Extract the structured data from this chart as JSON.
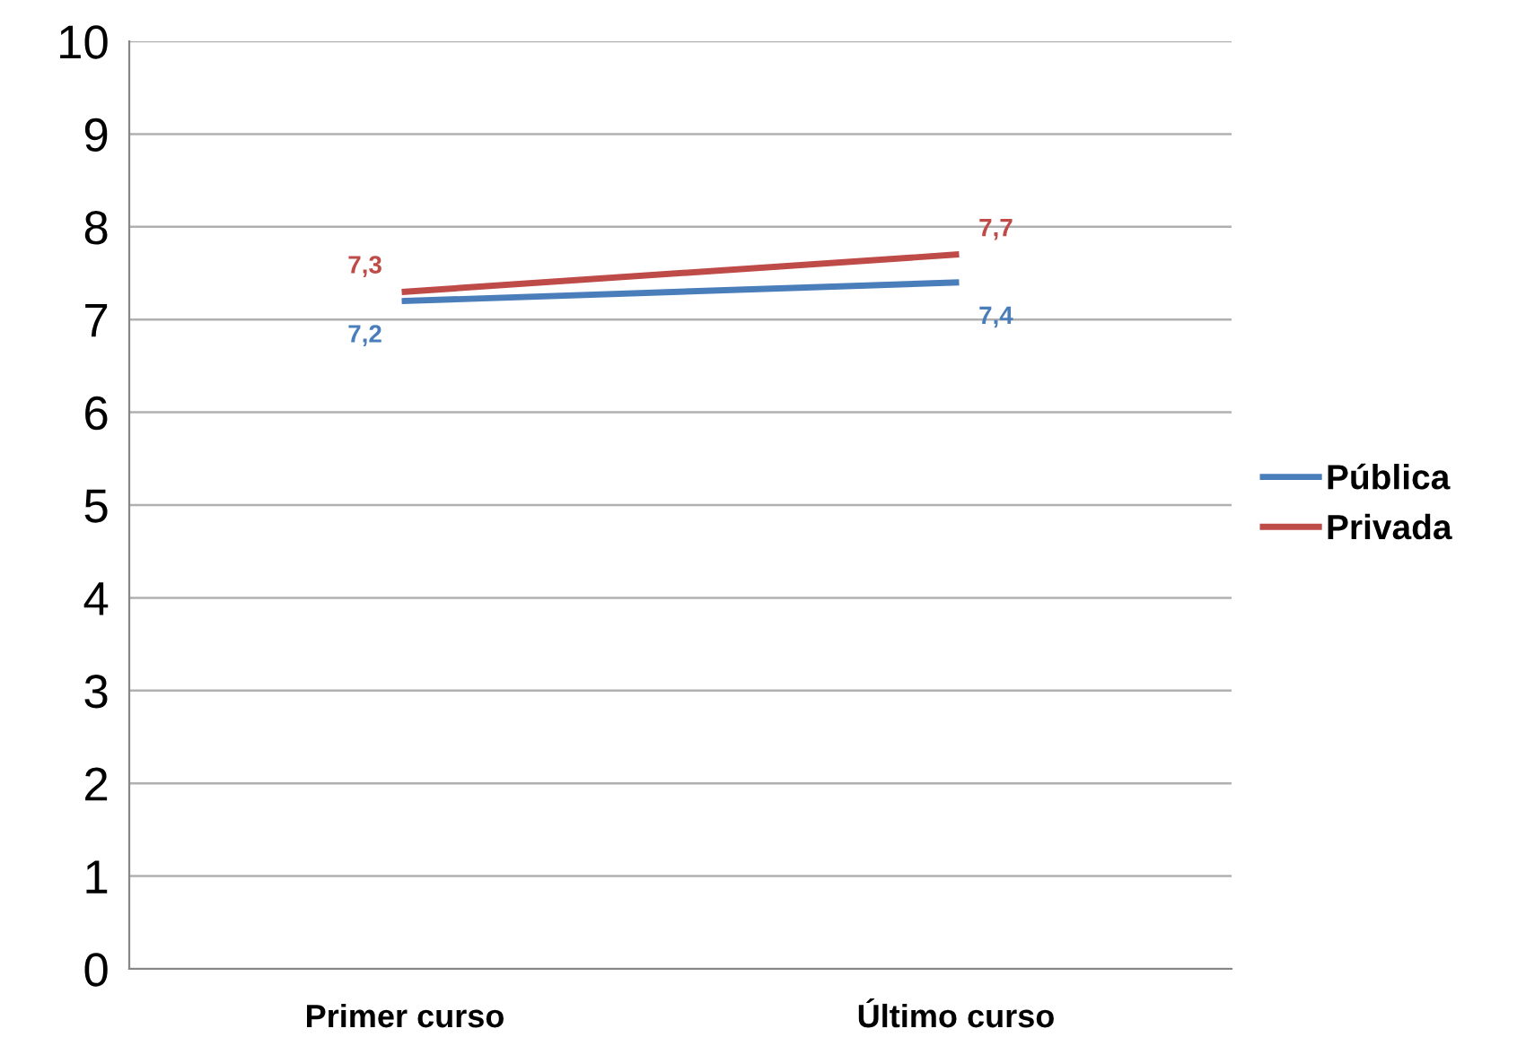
{
  "chart_data": {
    "type": "line",
    "categories": [
      "Primer curso",
      "Último curso"
    ],
    "series": [
      {
        "name": "Pública",
        "color": "#4a7ebb",
        "values": [
          7.2,
          7.4
        ],
        "value_labels": [
          "7,2",
          "7,4"
        ]
      },
      {
        "name": "Privada",
        "color": "#be4b48",
        "values": [
          7.3,
          7.7
        ],
        "value_labels": [
          "7,3",
          "7,7"
        ]
      }
    ],
    "ylim": [
      0,
      10
    ],
    "yticks": [
      0,
      1,
      2,
      3,
      4,
      5,
      6,
      7,
      8,
      9,
      10
    ],
    "grid": "y",
    "legend": "right",
    "marker": "none",
    "line_style": "solid"
  }
}
